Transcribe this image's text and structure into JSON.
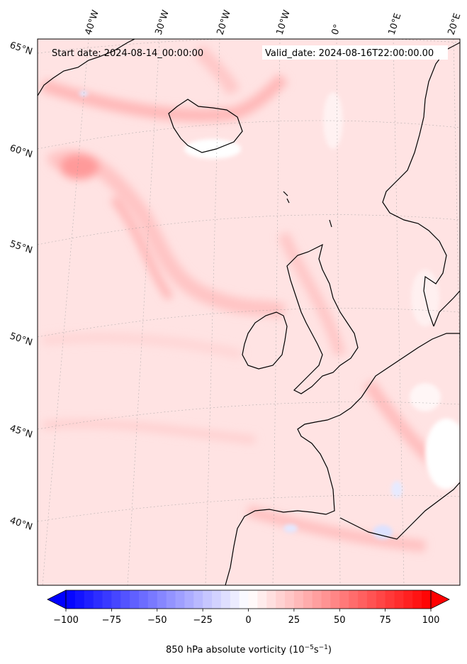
{
  "header": {
    "start_date": "Start date: 2024-08-14_00:00:00",
    "valid_date": "Valid_date: 2024-08-16T22:00:00.00"
  },
  "map": {
    "lon_labels": [
      "40°W",
      "30°W",
      "20°W",
      "10°W",
      "0°",
      "10°E",
      "20°E"
    ],
    "lat_labels": [
      "65°N",
      "60°N",
      "55°N",
      "50°N",
      "45°N",
      "40°N"
    ]
  },
  "colorbar": {
    "min": -100,
    "max": 100,
    "ticks": [
      "−100",
      "−75",
      "−50",
      "−25",
      "0",
      "25",
      "50",
      "75",
      "100"
    ],
    "tick_values": [
      -100,
      -75,
      -50,
      -25,
      0,
      25,
      50,
      75,
      100
    ],
    "levels": 40,
    "colormap": "bwr",
    "label": "850 hPa absolute vorticity (10",
    "label_exp1": "−5",
    "label_mid": "s",
    "label_exp2": "−1",
    "label_end": ")"
  },
  "colors": {
    "land_outline": "#000000",
    "field_base": "#ffe0e0",
    "field_strong": "#ffb5b5",
    "field_white": "#ffffff",
    "field_blue": "#dde4ff"
  }
}
